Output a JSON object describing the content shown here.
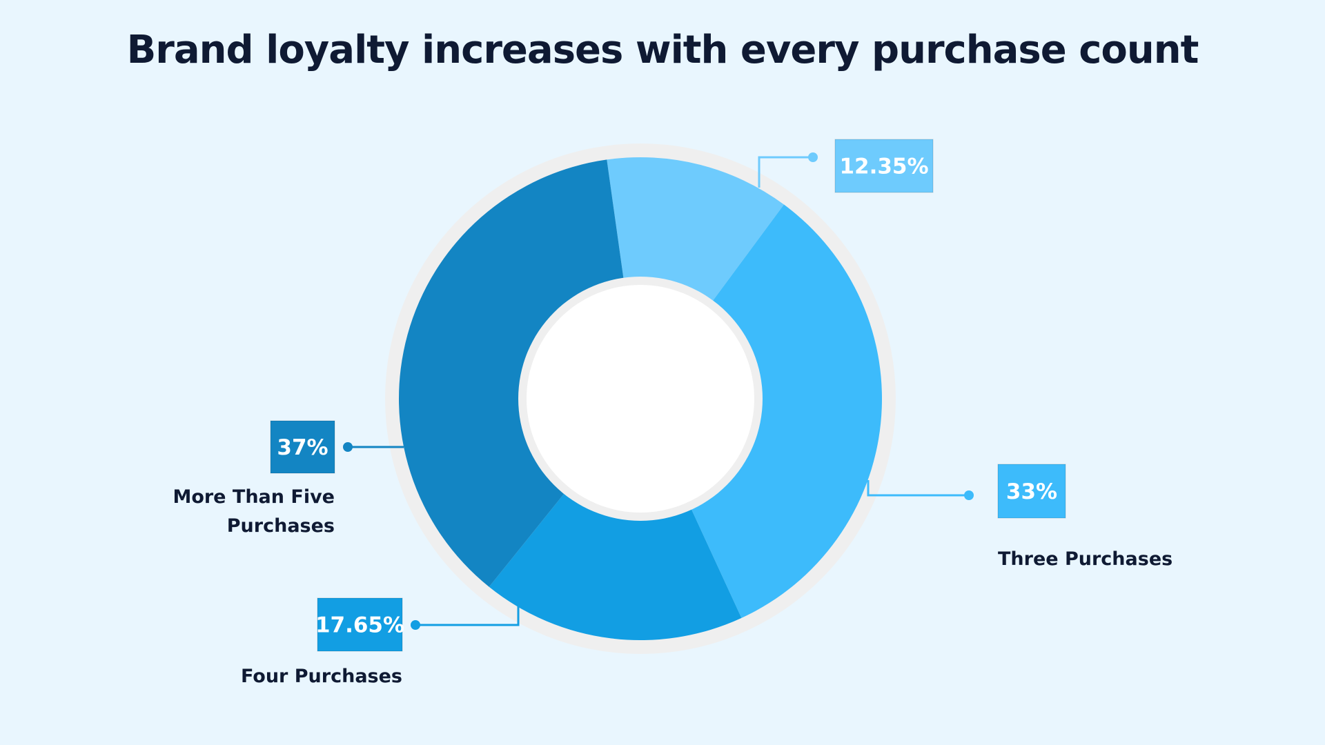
{
  "chart_data": {
    "type": "pie",
    "title": "Brand loyalty increases with every purchase count",
    "categories": [
      null,
      "Three Purchases",
      "Four Purchases",
      "More Than Five Purchases"
    ],
    "values": [
      12.35,
      33,
      17.65,
      37
    ],
    "value_labels": [
      "12.35%",
      "33%",
      "17.65%",
      "37%"
    ],
    "colors": [
      "#6ecbfd",
      "#3dbbfb",
      "#129ee3",
      "#1385c3"
    ],
    "donut": true
  }
}
